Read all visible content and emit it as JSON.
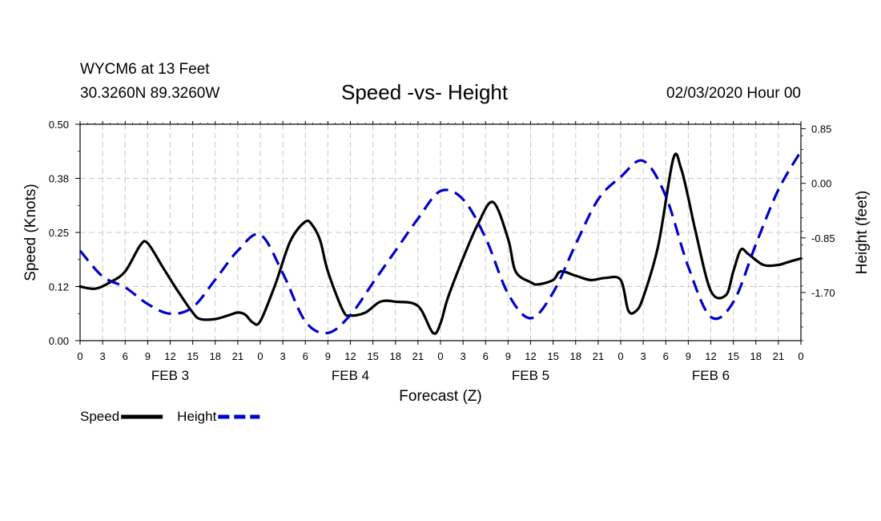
{
  "header": {
    "station": "WYCM6 at 13 Feet",
    "coords": "30.3260N 89.3260W",
    "run_time": "02/03/2020 Hour 00"
  },
  "chart_data": {
    "type": "line",
    "title": "Speed -vs- Height",
    "xlabel": "Forecast (Z)",
    "ylabel": "Speed (Knots)",
    "y2label": "Height (feet)",
    "ylim": [
      0.0,
      0.5
    ],
    "y2lim": [
      -2.45,
      0.92
    ],
    "yticks": [
      "0.00",
      "0.12",
      "0.25",
      "0.38",
      "0.50"
    ],
    "yticks_values": [
      0.0,
      0.125,
      0.25,
      0.375,
      0.5
    ],
    "y2ticks": [
      "0.85",
      "0.00",
      "-0.85",
      "-1.70"
    ],
    "y2ticks_values": [
      0.85,
      0.0,
      -0.85,
      -1.7
    ],
    "xlim": [
      0,
      96
    ],
    "xtick_hours": [
      0,
      3,
      6,
      9,
      12,
      15,
      18,
      21,
      24,
      27,
      30,
      33,
      36,
      39,
      42,
      45,
      48,
      51,
      54,
      57,
      60,
      63,
      66,
      69,
      72,
      75,
      78,
      81,
      84,
      87,
      90,
      93,
      96
    ],
    "xtick_labels": [
      "0",
      "3",
      "6",
      "9",
      "12",
      "15",
      "18",
      "21",
      "0",
      "3",
      "6",
      "9",
      "12",
      "15",
      "18",
      "21",
      "0",
      "3",
      "6",
      "9",
      "12",
      "15",
      "18",
      "21",
      "0",
      "3",
      "6",
      "9",
      "12",
      "15",
      "18",
      "21",
      "0"
    ],
    "day_labels": [
      {
        "label": "FEB 3",
        "hour": 12
      },
      {
        "label": "FEB 4",
        "hour": 36
      },
      {
        "label": "FEB 5",
        "hour": 60
      },
      {
        "label": "FEB 6",
        "hour": 84
      }
    ],
    "grid": true,
    "series": [
      {
        "name": "Speed",
        "axis": "left",
        "color": "#000000",
        "dash": "solid",
        "x": [
          0,
          2,
          4,
          6,
          8,
          9,
          11,
          13,
          15,
          16,
          18,
          20,
          21,
          22,
          23,
          24,
          26,
          28,
          30,
          31,
          32,
          33,
          35,
          36,
          38,
          40,
          42,
          45,
          47,
          48,
          49,
          51,
          53,
          55,
          57,
          58,
          60,
          61,
          63,
          64,
          66,
          68,
          70,
          72,
          73,
          74,
          75,
          77,
          79,
          80,
          81,
          82,
          84,
          86,
          87,
          88,
          89,
          91,
          93,
          94,
          96
        ],
        "y": [
          0.125,
          0.12,
          0.135,
          0.16,
          0.22,
          0.225,
          0.17,
          0.115,
          0.065,
          0.05,
          0.05,
          0.06,
          0.065,
          0.06,
          0.042,
          0.045,
          0.13,
          0.23,
          0.275,
          0.265,
          0.23,
          0.16,
          0.07,
          0.058,
          0.065,
          0.09,
          0.09,
          0.08,
          0.018,
          0.04,
          0.1,
          0.19,
          0.27,
          0.32,
          0.235,
          0.16,
          0.135,
          0.13,
          0.14,
          0.16,
          0.15,
          0.14,
          0.145,
          0.14,
          0.07,
          0.068,
          0.1,
          0.22,
          0.42,
          0.4,
          0.33,
          0.25,
          0.115,
          0.105,
          0.16,
          0.21,
          0.2,
          0.175,
          0.175,
          0.18,
          0.19
        ]
      },
      {
        "name": "Height",
        "axis": "right",
        "color": "#0000cc",
        "dash": "dashed",
        "x": [
          0,
          3,
          6,
          9,
          12,
          15,
          18,
          21,
          24,
          27,
          30,
          33,
          36,
          39,
          42,
          45,
          48,
          51,
          54,
          57,
          60,
          63,
          66,
          69,
          72,
          75,
          78,
          81,
          84,
          87,
          90,
          93,
          96
        ],
        "y": [
          -1.05,
          -1.45,
          -1.62,
          -1.88,
          -2.03,
          -1.93,
          -1.5,
          -1.05,
          -0.8,
          -1.4,
          -2.15,
          -2.33,
          -2.05,
          -1.55,
          -1.05,
          -0.55,
          -0.12,
          -0.25,
          -0.85,
          -1.72,
          -2.1,
          -1.7,
          -0.95,
          -0.25,
          0.1,
          0.35,
          -0.2,
          -1.3,
          -2.08,
          -1.85,
          -0.95,
          -0.1,
          0.5
        ]
      }
    ],
    "legend": [
      {
        "name": "Speed",
        "color": "#000000",
        "dash": "solid"
      },
      {
        "name": "Height",
        "color": "#0000cc",
        "dash": "dashed"
      }
    ],
    "legend_position": "bottom-left"
  }
}
